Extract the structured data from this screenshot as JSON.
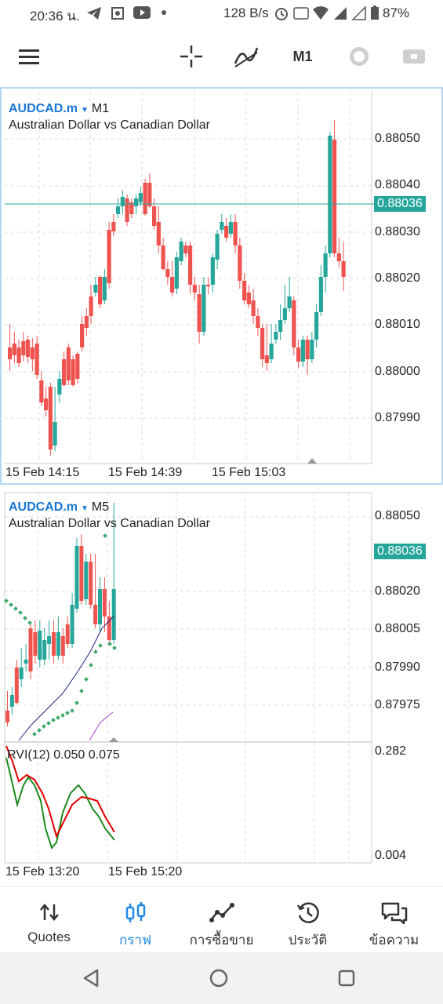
{
  "status_bar": {
    "time": "20:36 น.",
    "speed": "128 B/s",
    "battery": "87%"
  },
  "toolbar": {
    "menu_icon": "hamburger-menu-icon",
    "timeframe": "M1"
  },
  "chart1": {
    "symbol": "AUDCAD.m",
    "timeframe": "M1",
    "description": "Australian Dollar vs Canadian Dollar",
    "price_labels": [
      "0.88050",
      "0.88040",
      "0.88030",
      "0.88020",
      "0.88010",
      "0.88000",
      "0.87990"
    ],
    "current_price": "0.88036",
    "time_labels": [
      "15 Feb 14:15",
      "15 Feb 14:39",
      "15 Feb 15:03"
    ]
  },
  "chart2": {
    "symbol": "AUDCAD.m",
    "timeframe": "M5",
    "description": "Australian Dollar vs Canadian Dollar",
    "price_labels": [
      "0.88050",
      "0.88020",
      "0.88005",
      "0.87990",
      "0.87975"
    ],
    "current_price": "0.88036",
    "indicator_label": "RVI(12) 0.050 0.075",
    "indicator_max": "0.282",
    "indicator_min": "0.004",
    "time_labels": [
      "15 Feb 13:20",
      "15 Feb 15:20"
    ]
  },
  "bottom_nav": [
    {
      "label": "Quotes",
      "icon": "quotes-arrows-icon"
    },
    {
      "label": "กราฟ",
      "icon": "chart-candles-icon",
      "active": true
    },
    {
      "label": "การซื้อขาย",
      "icon": "trade-line-icon"
    },
    {
      "label": "ประวัติ",
      "icon": "history-clock-icon"
    },
    {
      "label": "ข้อความ",
      "icon": "messages-icon"
    }
  ],
  "colors": {
    "up": "#26a69a",
    "down": "#ef5350",
    "accent": "#1e88e5"
  }
}
